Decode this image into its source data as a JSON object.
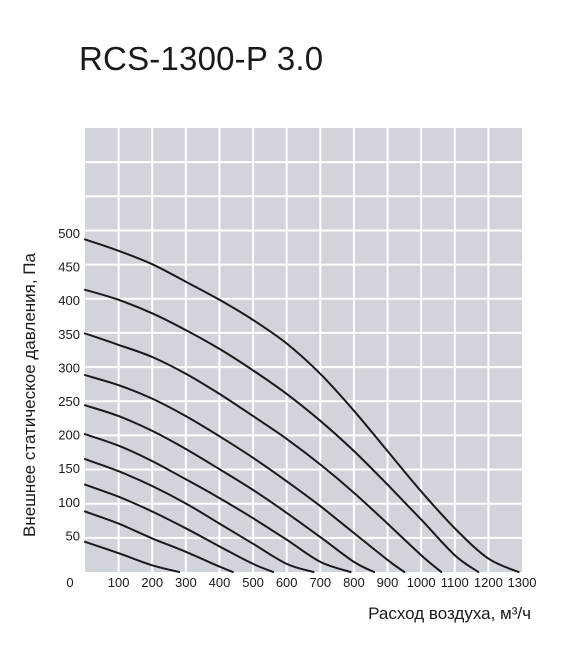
{
  "title": "RCS-1300-P 3.0",
  "colors": {
    "plot_background": "#d1d5db",
    "grid": "#ffffff",
    "curve": "#1a1a1a",
    "text": "#1a1a1a"
  },
  "chart_data": {
    "type": "line",
    "title": "RCS-1300-P 3.0",
    "xlabel": "Расход воздуха, м³/ч",
    "ylabel": "Внешнее статическое давления, Па",
    "xlim": [
      0,
      1300
    ],
    "ylim": [
      0,
      500
    ],
    "x_ticks": [
      "100",
      "200",
      "300",
      "400",
      "500",
      "600",
      "700",
      "800",
      "900",
      "1000",
      "1100",
      "1200",
      "1300"
    ],
    "y_ticks": [
      "50",
      "100",
      "150",
      "200",
      "250",
      "300",
      "350",
      "400",
      "450",
      "500"
    ],
    "origin_label": "0",
    "grid": true,
    "series": [
      {
        "x": [
          0,
          100,
          200,
          280
        ],
        "y": [
          45,
          28,
          10,
          0
        ]
      },
      {
        "x": [
          0,
          100,
          200,
          300,
          400,
          440
        ],
        "y": [
          90,
          72,
          50,
          30,
          8,
          0
        ]
      },
      {
        "x": [
          0,
          100,
          200,
          300,
          400,
          500,
          560
        ],
        "y": [
          130,
          112,
          90,
          65,
          38,
          12,
          0
        ]
      },
      {
        "x": [
          0,
          100,
          200,
          300,
          400,
          500,
          600,
          680
        ],
        "y": [
          168,
          150,
          128,
          102,
          72,
          42,
          12,
          0
        ]
      },
      {
        "x": [
          0,
          100,
          200,
          300,
          400,
          500,
          600,
          700,
          790
        ],
        "y": [
          205,
          188,
          165,
          138,
          110,
          80,
          48,
          15,
          0
        ]
      },
      {
        "x": [
          0,
          100,
          200,
          300,
          400,
          500,
          600,
          700,
          800,
          860
        ],
        "y": [
          248,
          232,
          210,
          183,
          153,
          122,
          88,
          52,
          15,
          0
        ]
      },
      {
        "x": [
          0,
          100,
          200,
          300,
          400,
          500,
          600,
          700,
          800,
          900,
          950
        ],
        "y": [
          293,
          278,
          258,
          232,
          202,
          170,
          135,
          98,
          58,
          18,
          0
        ]
      },
      {
        "x": [
          0,
          100,
          200,
          300,
          400,
          500,
          600,
          700,
          800,
          900,
          1000,
          1060
        ],
        "y": [
          355,
          338,
          320,
          295,
          265,
          232,
          198,
          160,
          118,
          72,
          25,
          0
        ]
      },
      {
        "x": [
          0,
          100,
          200,
          300,
          400,
          500,
          600,
          700,
          800,
          900,
          1000,
          1100,
          1170
        ],
        "y": [
          420,
          405,
          385,
          360,
          332,
          300,
          265,
          225,
          180,
          130,
          78,
          25,
          0
        ]
      },
      {
        "x": [
          0,
          100,
          200,
          300,
          400,
          500,
          600,
          700,
          800,
          900,
          1000,
          1100,
          1200,
          1290
        ],
        "y": [
          495,
          478,
          458,
          432,
          405,
          375,
          340,
          295,
          240,
          180,
          120,
          65,
          20,
          0
        ]
      }
    ]
  }
}
